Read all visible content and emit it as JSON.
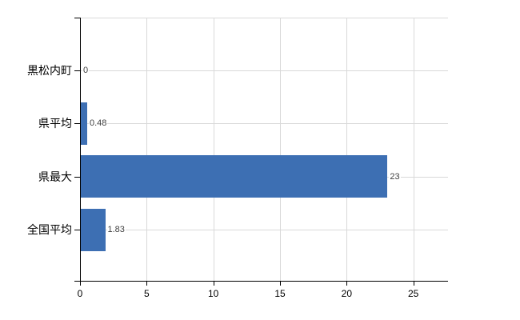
{
  "chart_data": {
    "type": "bar",
    "orientation": "horizontal",
    "categories": [
      "黒松内町",
      "県平均",
      "県最大",
      "全国平均"
    ],
    "values": [
      0,
      0.48,
      23,
      1.83
    ],
    "value_labels": [
      "0",
      "0.48",
      "23",
      "1.83"
    ],
    "xticks": [
      0,
      5,
      10,
      15,
      20,
      25
    ],
    "xtick_labels": [
      "0",
      "5",
      "10",
      "15",
      "20",
      "25"
    ],
    "xlim": [
      0,
      27.6
    ],
    "grid": true,
    "legend": false,
    "bar_color": "#3d6fb3",
    "gridline_color": "#d9d9d9",
    "axis_color": "#000000",
    "value_label_color": "#3f3f3f",
    "background_color": "#ffffff"
  }
}
